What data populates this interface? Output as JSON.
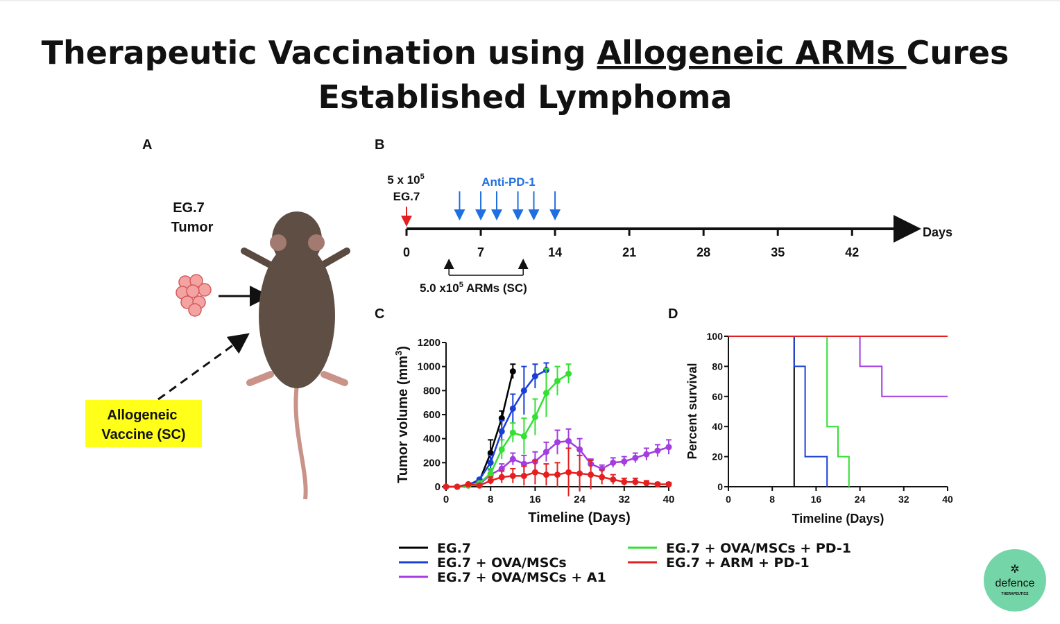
{
  "title": {
    "line1_start": "Therapeutic Vaccination using ",
    "line1_underlined": "Allogeneic ARMs ",
    "line1_end": "Cures",
    "line2": "Established Lymphoma"
  },
  "panel_a": {
    "label": "A",
    "tumor_label_1": "EG.7",
    "tumor_label_2": "Tumor",
    "vaccine_label_1": "Allogeneic",
    "vaccine_label_2": "Vaccine (SC)"
  },
  "panel_b": {
    "label": "B",
    "dose_base": "5 x 10",
    "dose_exp": "5",
    "dose_cells": "EG.7",
    "treatment": "Anti-PD-1",
    "axis_label": "Days",
    "xlim": [
      0,
      48
    ],
    "xticks": [
      0,
      7,
      14,
      21,
      28,
      35,
      42
    ],
    "injection_day": 0,
    "anti_pd1_days": [
      5,
      7,
      8.5,
      10.5,
      12,
      14
    ],
    "arms_days": [
      4,
      11
    ],
    "arms_base": "5.0 x10",
    "arms_exp": "5",
    "arms_rest": " ARMs (SC)"
  },
  "chart_data": [
    {
      "type": "line",
      "panel": "C",
      "x_label": "Timeline (Days)",
      "y_label_start": "Tumor volume (mm",
      "y_label_exp": "3",
      "y_label_end": ")",
      "xlim": [
        0,
        40
      ],
      "xticks": [
        0,
        8,
        16,
        24,
        32,
        40
      ],
      "ylim": [
        0,
        1200
      ],
      "yticks": [
        0,
        200,
        400,
        600,
        800,
        1000,
        1200
      ],
      "series": [
        {
          "name": "EG.7",
          "color": "#000000",
          "x": [
            0,
            2,
            4,
            6,
            8,
            10,
            12
          ],
          "values": [
            0,
            0,
            20,
            50,
            280,
            570,
            960
          ],
          "errors": [
            0,
            0,
            5,
            10,
            110,
            60,
            60
          ]
        },
        {
          "name": "EG.7 + OVA/MSCs",
          "color": "#1a3fd6",
          "x": [
            0,
            2,
            4,
            6,
            8,
            10,
            12,
            14,
            16,
            18
          ],
          "values": [
            0,
            0,
            15,
            60,
            200,
            460,
            650,
            800,
            920,
            970
          ],
          "errors": [
            0,
            0,
            5,
            10,
            60,
            90,
            120,
            200,
            100,
            60
          ]
        },
        {
          "name": "EG.7 + OVA/MSCs + A1",
          "color": "#a23ee0",
          "x": [
            0,
            2,
            4,
            6,
            8,
            10,
            12,
            14,
            16,
            18,
            20,
            22,
            24,
            26,
            28,
            30,
            32,
            34,
            36,
            38,
            40
          ],
          "values": [
            0,
            0,
            10,
            20,
            100,
            150,
            230,
            190,
            210,
            290,
            370,
            380,
            310,
            190,
            150,
            200,
            210,
            240,
            270,
            300,
            330
          ],
          "errors": [
            0,
            0,
            5,
            10,
            40,
            40,
            50,
            70,
            80,
            80,
            100,
            100,
            90,
            40,
            30,
            40,
            40,
            40,
            50,
            50,
            60
          ]
        },
        {
          "name": "EG.7 + OVA/MSCs + PD-1",
          "color": "#33e033",
          "x": [
            0,
            2,
            4,
            6,
            8,
            10,
            12,
            14,
            16,
            18,
            20,
            22
          ],
          "values": [
            0,
            0,
            10,
            30,
            110,
            310,
            450,
            420,
            580,
            780,
            880,
            940
          ],
          "errors": [
            0,
            0,
            5,
            10,
            40,
            80,
            80,
            150,
            150,
            200,
            120,
            80
          ]
        },
        {
          "name": "EG.7 + ARM + PD-1",
          "color": "#e51f1f",
          "x": [
            0,
            2,
            4,
            6,
            8,
            10,
            12,
            14,
            16,
            18,
            20,
            22,
            24,
            26,
            28,
            30,
            32,
            34,
            36,
            38,
            40
          ],
          "values": [
            0,
            0,
            20,
            10,
            50,
            80,
            90,
            90,
            120,
            100,
            100,
            120,
            110,
            100,
            80,
            60,
            40,
            40,
            30,
            20,
            20
          ],
          "errors": [
            0,
            0,
            5,
            5,
            30,
            50,
            60,
            80,
            100,
            90,
            100,
            200,
            150,
            120,
            60,
            40,
            30,
            30,
            20,
            15,
            15
          ]
        }
      ]
    },
    {
      "type": "step",
      "panel": "D",
      "x_label": "Timeline (Days)",
      "y_label": "Percent survival",
      "xlim": [
        0,
        40
      ],
      "xticks": [
        0,
        8,
        16,
        24,
        32,
        40
      ],
      "ylim": [
        0,
        100
      ],
      "yticks": [
        0,
        20,
        40,
        60,
        80,
        100
      ],
      "series": [
        {
          "color": "#000000",
          "x": [
            0,
            12
          ],
          "values": [
            100,
            0
          ]
        },
        {
          "color": "#1a3fd6",
          "x": [
            0,
            12,
            14,
            18
          ],
          "values": [
            100,
            80,
            20,
            0
          ]
        },
        {
          "color": "#a23ee0",
          "x": [
            0,
            24,
            28,
            40
          ],
          "values": [
            100,
            80,
            60,
            60
          ]
        },
        {
          "color": "#33e033",
          "x": [
            0,
            18,
            20,
            22
          ],
          "values": [
            100,
            40,
            20,
            0
          ]
        },
        {
          "color": "#e51f1f",
          "x": [
            0,
            40
          ],
          "values": [
            100,
            100
          ]
        }
      ]
    }
  ],
  "logo": {
    "name": "defence",
    "tagline": "THERAPEUTICS"
  }
}
